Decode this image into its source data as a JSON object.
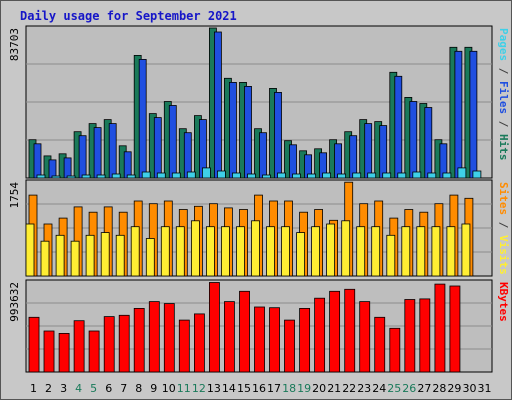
{
  "title": "Daily usage for September 2021",
  "colors": {
    "background": "#c8c8c8",
    "panel": "#bebebe",
    "grid": "#8c8c8c",
    "hits": "#1a7a5a",
    "files": "#1f4fe0",
    "pages": "#3fd0e8",
    "visits": "#ff8c00",
    "sites": "#ffee33",
    "kbytes": "#ff0000",
    "title": "#1616c8",
    "weekday_tick": "#000000",
    "weekend_tick": "#1a7a5a"
  },
  "chart_data": [
    {
      "type": "bar",
      "name": "hits-files-pages",
      "ymax_label": "83703",
      "ylim": [
        0,
        83703
      ],
      "grid": true,
      "right_label_parts": [
        {
          "text": "Pages",
          "color": "#3fd0e8"
        },
        {
          "text": " / ",
          "color": "#404040"
        },
        {
          "text": "Files",
          "color": "#1f4fe0"
        },
        {
          "text": " / ",
          "color": "#404040"
        },
        {
          "text": "Hits",
          "color": "#1a7a5a"
        }
      ],
      "series": [
        {
          "name": "Hits",
          "color": "#1a7a5a",
          "values": [
            21350,
            12360,
            13480,
            25840,
            30340,
            32580,
            17980,
            68440,
            35960,
            42700,
            27520,
            34830,
            83700,
            55610,
            53360,
            27520,
            50000,
            20790,
            15170,
            16300,
            21350,
            25840,
            32580,
            31460,
            58980,
            44950,
            41580,
            21350,
            72930,
            72930,
            0
          ]
        },
        {
          "name": "Files",
          "color": "#1f4fe0",
          "values": [
            19110,
            10110,
            11240,
            23600,
            28100,
            30340,
            14610,
            66200,
            33710,
            40460,
            25280,
            32580,
            81460,
            53360,
            51120,
            25280,
            47760,
            18540,
            12920,
            14050,
            19110,
            23600,
            30340,
            29220,
            56740,
            42700,
            39330,
            19110,
            70680,
            70680,
            0
          ]
        },
        {
          "name": "Pages",
          "color": "#3fd0e8",
          "values": [
            1690,
            1120,
            1120,
            1690,
            1690,
            2250,
            1690,
            3370,
            2810,
            2810,
            3370,
            5620,
            3930,
            2810,
            2250,
            1690,
            2810,
            2250,
            2250,
            2810,
            2250,
            2810,
            2810,
            2810,
            2810,
            3370,
            2810,
            2810,
            5620,
            3930,
            0
          ]
        }
      ]
    },
    {
      "type": "bar",
      "name": "visits-sites",
      "ymax_label": "1754",
      "ylim": [
        0,
        1754
      ],
      "grid": true,
      "right_label_parts": [
        {
          "text": "Sites",
          "color": "#ff8c00"
        },
        {
          "text": " / ",
          "color": "#404040"
        },
        {
          "text": "Visits",
          "color": "#ffee33"
        }
      ],
      "series": [
        {
          "name": "Visits",
          "color": "#ff8c00",
          "values": [
            1510,
            970,
            1080,
            1290,
            1190,
            1290,
            1190,
            1400,
            1350,
            1400,
            1240,
            1300,
            1350,
            1270,
            1240,
            1510,
            1400,
            1400,
            1190,
            1240,
            1040,
            1750,
            1350,
            1400,
            1080,
            1240,
            1190,
            1350,
            1510,
            1450,
            0
          ]
        },
        {
          "name": "Sites",
          "color": "#ffee33",
          "values": [
            970,
            650,
            760,
            650,
            760,
            810,
            760,
            920,
            700,
            920,
            920,
            1030,
            920,
            920,
            920,
            1030,
            920,
            920,
            810,
            920,
            970,
            1030,
            920,
            920,
            760,
            920,
            920,
            920,
            920,
            970,
            0
          ]
        }
      ]
    },
    {
      "type": "bar",
      "name": "kbytes",
      "ymax_label": "993632",
      "ylim": [
        0,
        993632
      ],
      "grid": true,
      "right_label_parts": [
        {
          "text": "KBytes",
          "color": "#ff0000"
        }
      ],
      "series": [
        {
          "name": "KBytes",
          "color": "#ff0000",
          "values": [
            603720,
            452790,
            426380,
            565980,
            452790,
            611270,
            626360,
            701830,
            777300,
            754660,
            573530,
            641460,
            988600,
            777300,
            890500,
            717920,
            709370,
            573530,
            701830,
            815030,
            890500,
            913140,
            777300,
            603720,
            482980,
            800000,
            807000,
            970000,
            950000,
            0,
            0
          ]
        }
      ]
    }
  ],
  "x_ticks": [
    {
      "label": "1",
      "weekend": false
    },
    {
      "label": "2",
      "weekend": false
    },
    {
      "label": "3",
      "weekend": false
    },
    {
      "label": "4",
      "weekend": true
    },
    {
      "label": "5",
      "weekend": true
    },
    {
      "label": "6",
      "weekend": false
    },
    {
      "label": "7",
      "weekend": false
    },
    {
      "label": "8",
      "weekend": false
    },
    {
      "label": "9",
      "weekend": false
    },
    {
      "label": "10",
      "weekend": false
    },
    {
      "label": "11",
      "weekend": true
    },
    {
      "label": "12",
      "weekend": true
    },
    {
      "label": "13",
      "weekend": false
    },
    {
      "label": "14",
      "weekend": false
    },
    {
      "label": "15",
      "weekend": false
    },
    {
      "label": "16",
      "weekend": false
    },
    {
      "label": "17",
      "weekend": false
    },
    {
      "label": "18",
      "weekend": true
    },
    {
      "label": "19",
      "weekend": true
    },
    {
      "label": "20",
      "weekend": false
    },
    {
      "label": "21",
      "weekend": false
    },
    {
      "label": "22",
      "weekend": false
    },
    {
      "label": "23",
      "weekend": false
    },
    {
      "label": "24",
      "weekend": false
    },
    {
      "label": "25",
      "weekend": true
    },
    {
      "label": "26",
      "weekend": true
    },
    {
      "label": "27",
      "weekend": false
    },
    {
      "label": "28",
      "weekend": false
    },
    {
      "label": "29",
      "weekend": false
    },
    {
      "label": "30",
      "weekend": false
    },
    {
      "label": "31",
      "weekend": false
    }
  ]
}
